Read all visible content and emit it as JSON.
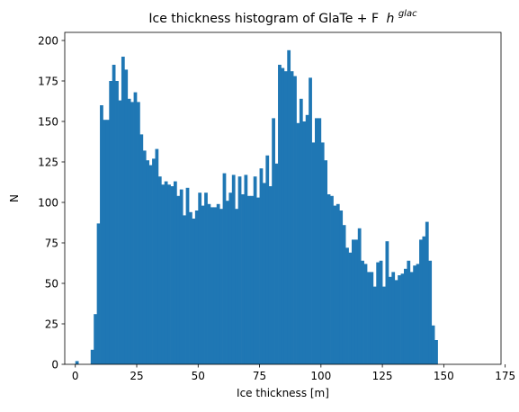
{
  "chart_data": {
    "type": "bar",
    "title": "Ice thickness histogram of GlaTe + F",
    "title_math": "h",
    "title_math_sup": "glac",
    "xlabel": "Ice thickness [m]",
    "ylabel": "N",
    "xlim": [
      -4.3,
      173.3
    ],
    "ylim": [
      0,
      205
    ],
    "xticks": [
      0,
      25,
      50,
      75,
      100,
      125,
      150,
      175
    ],
    "yticks": [
      0,
      25,
      50,
      75,
      100,
      125,
      150,
      175,
      200
    ],
    "bin_start": 0,
    "bin_width": 1.25,
    "bar_color": "#1f77b4",
    "values": [
      2,
      0,
      0,
      0,
      0,
      9,
      31,
      87,
      160,
      151,
      151,
      175,
      185,
      175,
      163,
      190,
      182,
      164,
      162,
      168,
      162,
      142,
      132,
      126,
      123,
      127,
      133,
      116,
      111,
      113,
      111,
      110,
      113,
      104,
      108,
      92,
      109,
      94,
      90,
      95,
      106,
      98,
      106,
      99,
      97,
      97,
      99,
      96,
      118,
      101,
      106,
      117,
      96,
      116,
      105,
      117,
      104,
      104,
      116,
      103,
      121,
      112,
      129,
      110,
      152,
      124,
      185,
      183,
      181,
      194,
      181,
      178,
      149,
      164,
      150,
      154,
      177,
      137,
      152,
      152,
      137,
      126,
      105,
      104,
      98,
      99,
      95,
      86,
      72,
      69,
      77,
      77,
      84,
      64,
      62,
      57,
      57,
      48,
      63,
      64,
      48,
      76,
      54,
      57,
      52,
      55,
      56,
      59,
      64,
      57,
      61,
      62,
      77,
      79,
      88,
      64,
      24,
      15
    ]
  }
}
